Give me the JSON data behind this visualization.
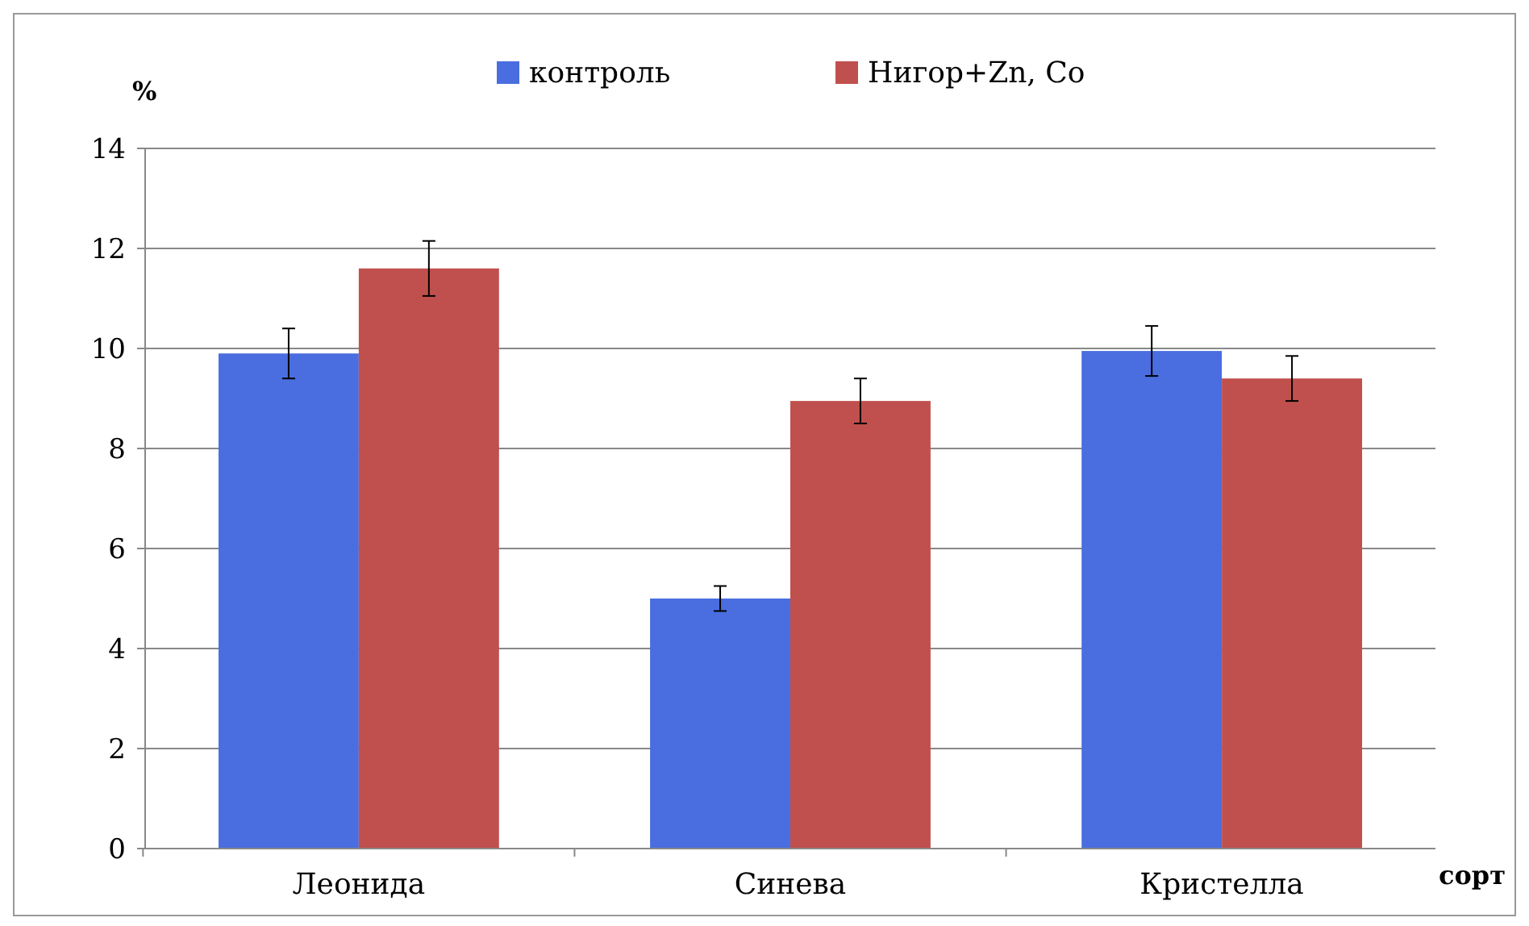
{
  "chart_data": {
    "type": "bar",
    "xlabel": "сорт",
    "ylabel": "%",
    "categories": [
      "Леонида",
      "Синева",
      "Кристелла"
    ],
    "series": [
      {
        "name": "контроль",
        "color": "#4a6ee0",
        "values": [
          9.9,
          5.0,
          9.95
        ],
        "errors": [
          0.5,
          0.25,
          0.5
        ]
      },
      {
        "name": "Нигор+Zn, Co",
        "color": "#c0504d",
        "values": [
          11.6,
          8.95,
          9.4
        ],
        "errors": [
          0.55,
          0.45,
          0.45
        ]
      }
    ],
    "ylim": [
      0,
      14
    ],
    "yticks": [
      0,
      2,
      4,
      6,
      8,
      10,
      12,
      14
    ],
    "grid": "y",
    "legend": "top"
  }
}
